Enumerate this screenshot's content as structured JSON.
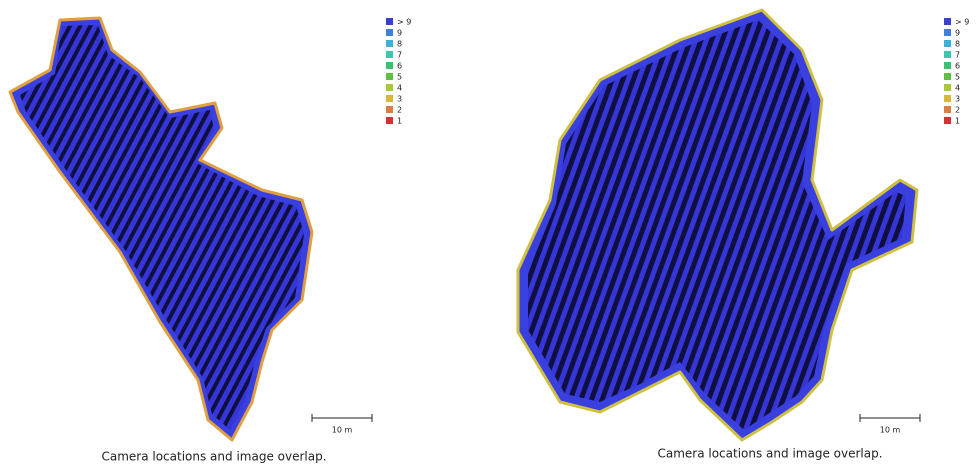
{
  "panels": [
    {
      "legend": [
        {
          "label": "> 9",
          "color": "#3a3fd0"
        },
        {
          "label": "9",
          "color": "#3f7fdc"
        },
        {
          "label": "8",
          "color": "#3fb0d8"
        },
        {
          "label": "7",
          "color": "#3cc8b0"
        },
        {
          "label": "6",
          "color": "#3cc070"
        },
        {
          "label": "5",
          "color": "#5cc040"
        },
        {
          "label": "4",
          "color": "#a8c838"
        },
        {
          "label": "3",
          "color": "#d8b838"
        },
        {
          "label": "2",
          "color": "#d88040"
        },
        {
          "label": "1",
          "color": "#d83030"
        }
      ],
      "scale_bar": "10 m",
      "caption": "Camera locations and image overlap."
    },
    {
      "legend": [
        {
          "label": "> 9",
          "color": "#3a3fd0"
        },
        {
          "label": "9",
          "color": "#3f7fdc"
        },
        {
          "label": "8",
          "color": "#3fb0d8"
        },
        {
          "label": "7",
          "color": "#3cc8b0"
        },
        {
          "label": "6",
          "color": "#3cc070"
        },
        {
          "label": "5",
          "color": "#5cc040"
        },
        {
          "label": "4",
          "color": "#a8c838"
        },
        {
          "label": "3",
          "color": "#d8b838"
        },
        {
          "label": "2",
          "color": "#d88040"
        },
        {
          "label": "1",
          "color": "#d83030"
        }
      ],
      "scale_bar": "10 m",
      "caption": "Camera locations and image overlap."
    }
  ]
}
